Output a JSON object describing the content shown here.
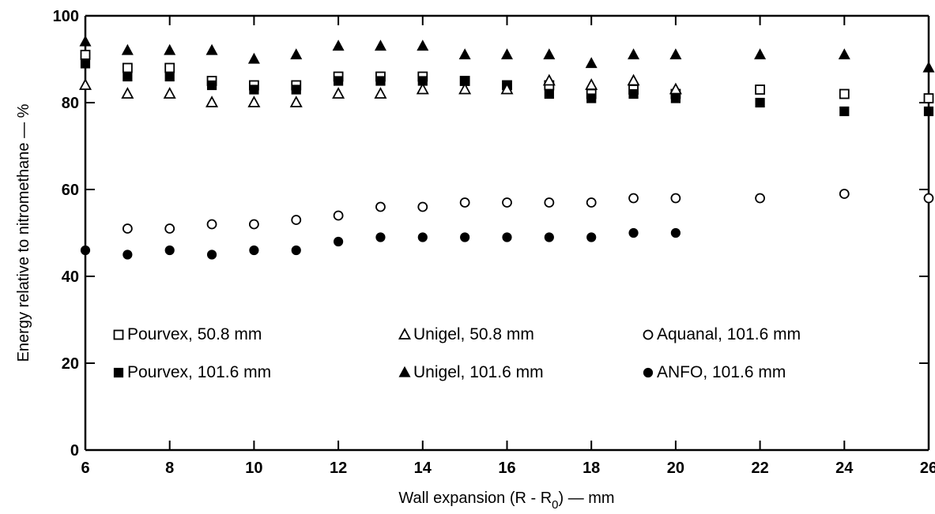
{
  "chart_data": {
    "type": "scatter",
    "title": "",
    "xlabel": "Wall expansion (R - R",
    "xlabel_sub": "0",
    "xlabel_tail": ") — mm",
    "ylabel": "Energy relative to nitromethane — %",
    "xlim": [
      6,
      26
    ],
    "ylim": [
      0,
      100
    ],
    "x_ticks": [
      6,
      8,
      10,
      12,
      14,
      16,
      18,
      20,
      22,
      24,
      26
    ],
    "y_ticks": [
      0,
      20,
      40,
      60,
      80,
      100
    ],
    "grid": false,
    "legend_position": "lower-center-inside",
    "series": [
      {
        "name": "Pourvex, 50.8 mm",
        "marker": "square-open",
        "x": [
          6,
          7,
          8,
          9,
          10,
          11,
          12,
          13,
          14,
          15,
          16,
          17,
          18,
          19,
          20,
          22,
          24,
          26
        ],
        "y": [
          91,
          88,
          88,
          85,
          84,
          84,
          86,
          86,
          86,
          85,
          84,
          84,
          82,
          83,
          82,
          83,
          82,
          81
        ]
      },
      {
        "name": "Pourvex, 101.6 mm",
        "marker": "square-filled",
        "x": [
          6,
          7,
          8,
          9,
          10,
          11,
          12,
          13,
          14,
          15,
          16,
          17,
          18,
          19,
          20,
          22,
          24,
          26
        ],
        "y": [
          89,
          86,
          86,
          84,
          83,
          83,
          85,
          85,
          85,
          85,
          84,
          82,
          81,
          82,
          81,
          80,
          78,
          78
        ]
      },
      {
        "name": "Unigel, 50.8 mm",
        "marker": "triangle-open",
        "x": [
          6,
          7,
          8,
          9,
          10,
          11,
          12,
          13,
          14,
          15,
          16,
          17,
          18,
          19,
          20
        ],
        "y": [
          84,
          82,
          82,
          80,
          80,
          80,
          82,
          82,
          83,
          83,
          83,
          85,
          84,
          85,
          83
        ]
      },
      {
        "name": "Unigel, 101.6 mm",
        "marker": "triangle-filled",
        "x": [
          6,
          7,
          8,
          9,
          10,
          11,
          12,
          13,
          14,
          15,
          16,
          17,
          18,
          19,
          20,
          22,
          24,
          26
        ],
        "y": [
          94,
          92,
          92,
          92,
          90,
          91,
          93,
          93,
          93,
          91,
          91,
          91,
          89,
          91,
          91,
          91,
          91,
          88
        ]
      },
      {
        "name": "Aquanal, 101.6 mm",
        "marker": "circle-open",
        "x": [
          7,
          8,
          9,
          10,
          11,
          12,
          13,
          14,
          15,
          16,
          17,
          18,
          19,
          20,
          22,
          24,
          26
        ],
        "y": [
          51,
          51,
          52,
          52,
          53,
          54,
          56,
          56,
          57,
          57,
          57,
          57,
          58,
          58,
          58,
          59,
          58
        ]
      },
      {
        "name": "ANFO, 101.6 mm",
        "marker": "circle-filled",
        "x": [
          6,
          7,
          8,
          9,
          10,
          11,
          12,
          13,
          14,
          15,
          16,
          17,
          18,
          19,
          20
        ],
        "y": [
          46,
          45,
          46,
          45,
          46,
          46,
          48,
          49,
          49,
          49,
          49,
          49,
          49,
          50,
          50
        ]
      }
    ]
  }
}
